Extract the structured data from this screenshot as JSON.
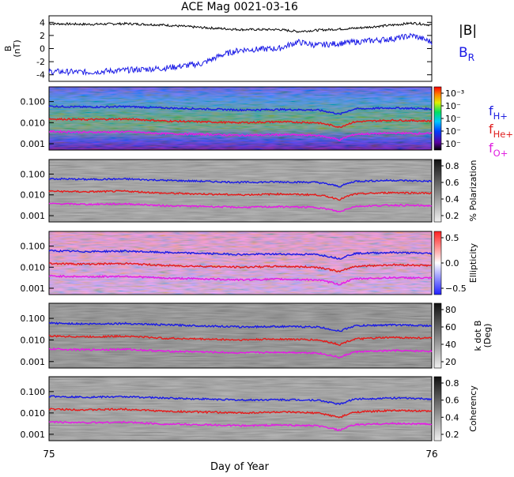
{
  "title": "ACE Mag 0021-03-16",
  "xlabel": "Day of Year",
  "x_ticks": [
    "75",
    "76"
  ],
  "panel1": {
    "ylabel": "B\n(nT)",
    "ylim": [
      -5,
      5
    ],
    "y_ticks": [
      "4",
      "2",
      "0",
      "-2",
      "-4"
    ],
    "legend": [
      {
        "label": "|B|",
        "color": "#000000"
      },
      {
        "label": "B",
        "sub": "R",
        "color": "#1a1ae6"
      }
    ]
  },
  "freq_ticks": [
    "0.100",
    "0.010",
    "0.001"
  ],
  "freq_ylim": [
    0.0005,
    0.5
  ],
  "freq_legend": [
    {
      "label": "f",
      "sub": "H+",
      "color": "#2020e0"
    },
    {
      "label": "f",
      "sub": "He+",
      "color": "#e02020"
    },
    {
      "label": "f",
      "sub": "O+",
      "color": "#e020e0"
    }
  ],
  "colorbars": [
    {
      "name": "power",
      "label": "",
      "ticks": [
        "10⁻³",
        "10⁻",
        "10⁻",
        "10⁻",
        "10⁻"
      ]
    },
    {
      "name": "polarization",
      "label": "% Polarization",
      "ticks": [
        "0.8",
        "0.6",
        "0.4",
        "0.2"
      ]
    },
    {
      "name": "ellipticity",
      "label": "Ellipticity",
      "ticks": [
        "0.5",
        "0.0",
        "−0.5"
      ]
    },
    {
      "name": "kdotb",
      "label": "k dot B\n(Deg)",
      "ticks": [
        "80",
        "60",
        "40",
        "20"
      ]
    },
    {
      "name": "coherency",
      "label": "Coherency",
      "ticks": [
        "0.8",
        "0.6",
        "0.4",
        "0.2"
      ]
    }
  ],
  "colors": {
    "H": "#1a1ae6",
    "He": "#e61a1a",
    "O": "#e61ae6",
    "Btot": "#000000",
    "Br": "#1a1ae6"
  },
  "chart_data": {
    "type": "line",
    "x_range": [
      75,
      76
    ],
    "series": [
      {
        "name": "|B|",
        "x": [
          75.0,
          75.1,
          75.2,
          75.3,
          75.4,
          75.5,
          75.6,
          75.65,
          75.7,
          75.8,
          75.9,
          75.95,
          76.0
        ],
        "values": [
          3.8,
          3.7,
          3.8,
          3.6,
          3.2,
          2.9,
          2.9,
          2.6,
          2.8,
          3.1,
          3.6,
          3.9,
          3.6
        ]
      },
      {
        "name": "B_R",
        "x": [
          75.0,
          75.1,
          75.2,
          75.3,
          75.4,
          75.45,
          75.5,
          75.6,
          75.65,
          75.7,
          75.8,
          75.9,
          75.95,
          76.0
        ],
        "values": [
          -3.5,
          -3.6,
          -3.3,
          -3.0,
          -2.3,
          -1.0,
          -0.2,
          0.0,
          1.0,
          0.5,
          1.0,
          1.5,
          2.0,
          1.0
        ]
      },
      {
        "name": "f_H+",
        "x": [
          75.0,
          75.1,
          75.2,
          75.3,
          75.4,
          75.5,
          75.6,
          75.7,
          75.76,
          75.8,
          75.9,
          76.0
        ],
        "values": [
          0.06,
          0.055,
          0.058,
          0.05,
          0.045,
          0.04,
          0.042,
          0.04,
          0.025,
          0.045,
          0.05,
          0.045
        ]
      },
      {
        "name": "f_He+",
        "x": [
          75.0,
          75.1,
          75.2,
          75.3,
          75.4,
          75.5,
          75.6,
          75.7,
          75.76,
          75.8,
          75.9,
          76.0
        ],
        "values": [
          0.015,
          0.014,
          0.015,
          0.012,
          0.011,
          0.01,
          0.011,
          0.01,
          0.006,
          0.011,
          0.013,
          0.012
        ]
      },
      {
        "name": "f_O+",
        "x": [
          75.0,
          75.1,
          75.2,
          75.3,
          75.4,
          75.5,
          75.6,
          75.7,
          75.76,
          75.8,
          75.9,
          76.0
        ],
        "values": [
          0.0038,
          0.0035,
          0.0037,
          0.003,
          0.0028,
          0.0025,
          0.0027,
          0.0025,
          0.0015,
          0.0028,
          0.0032,
          0.003
        ]
      }
    ]
  }
}
